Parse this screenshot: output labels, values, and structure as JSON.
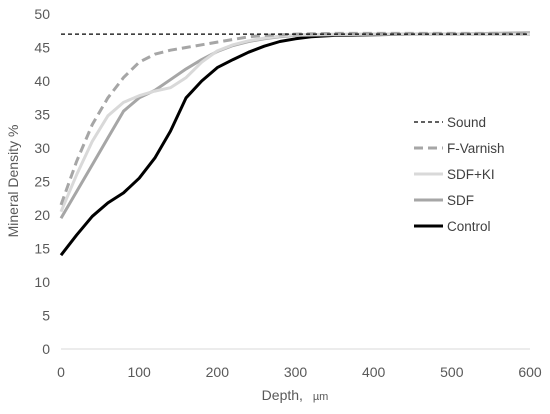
{
  "chart_data": {
    "type": "line",
    "xlabel": "Depth,",
    "xlabel_unit": "µm",
    "ylabel": "Mineral Density %",
    "xlim": [
      0,
      600
    ],
    "ylim": [
      0,
      50
    ],
    "x_ticks": [
      0,
      100,
      200,
      300,
      400,
      500,
      600
    ],
    "y_ticks": [
      0,
      5,
      10,
      15,
      20,
      25,
      30,
      35,
      40,
      45,
      50
    ],
    "grid": false,
    "legend_position": "right",
    "series": [
      {
        "name": "Sound",
        "color": "#000000",
        "style": "short-dash",
        "x": [
          0,
          600
        ],
        "y": [
          47.0,
          47.0
        ]
      },
      {
        "name": "F-Varnish",
        "color": "#a6a6a6",
        "style": "dash",
        "x": [
          0,
          20,
          40,
          60,
          80,
          100,
          120,
          140,
          160,
          180,
          200,
          220,
          240,
          260,
          280,
          300,
          350,
          400,
          450,
          500,
          550,
          600
        ],
        "y": [
          21.5,
          28,
          33.5,
          37.5,
          40.5,
          42.8,
          44.0,
          44.6,
          45.0,
          45.4,
          45.8,
          46.2,
          46.6,
          46.8,
          46.9,
          47.0,
          47.1,
          47.1,
          47.1,
          47.1,
          47.1,
          47.1
        ]
      },
      {
        "name": "SDF+KI",
        "color": "#d9d9d9",
        "style": "solid",
        "x": [
          0,
          20,
          40,
          60,
          80,
          100,
          120,
          140,
          160,
          180,
          200,
          220,
          240,
          260,
          280,
          300,
          350,
          400,
          450,
          500,
          550,
          600
        ],
        "y": [
          20.5,
          26.0,
          31.0,
          34.8,
          36.8,
          37.8,
          38.5,
          39.0,
          40.5,
          42.8,
          44.5,
          45.4,
          46.0,
          46.4,
          46.7,
          46.9,
          47.0,
          47.0,
          47.0,
          47.0,
          47.0,
          47.0
        ]
      },
      {
        "name": "SDF",
        "color": "#a6a6a6",
        "style": "solid",
        "x": [
          0,
          20,
          40,
          60,
          80,
          100,
          120,
          140,
          160,
          180,
          200,
          220,
          240,
          260,
          280,
          300,
          350,
          400,
          450,
          500,
          550,
          600
        ],
        "y": [
          19.5,
          23.5,
          27.5,
          31.5,
          35.5,
          37.5,
          38.6,
          40.2,
          41.8,
          43.2,
          44.4,
          45.3,
          45.9,
          46.3,
          46.6,
          46.8,
          46.9,
          47.0,
          47.0,
          47.0,
          47.1,
          47.2
        ]
      },
      {
        "name": "Control",
        "color": "#000000",
        "style": "solid",
        "x": [
          0,
          20,
          40,
          60,
          80,
          100,
          120,
          140,
          160,
          180,
          200,
          220,
          240,
          260,
          280,
          300,
          320,
          350,
          400,
          450,
          500,
          550,
          600
        ],
        "y": [
          14.0,
          17.0,
          19.8,
          21.8,
          23.3,
          25.5,
          28.5,
          32.5,
          37.5,
          40.0,
          42.0,
          43.2,
          44.3,
          45.2,
          45.9,
          46.3,
          46.6,
          46.8,
          46.9,
          47.0,
          47.0,
          47.0,
          47.0
        ]
      }
    ]
  }
}
